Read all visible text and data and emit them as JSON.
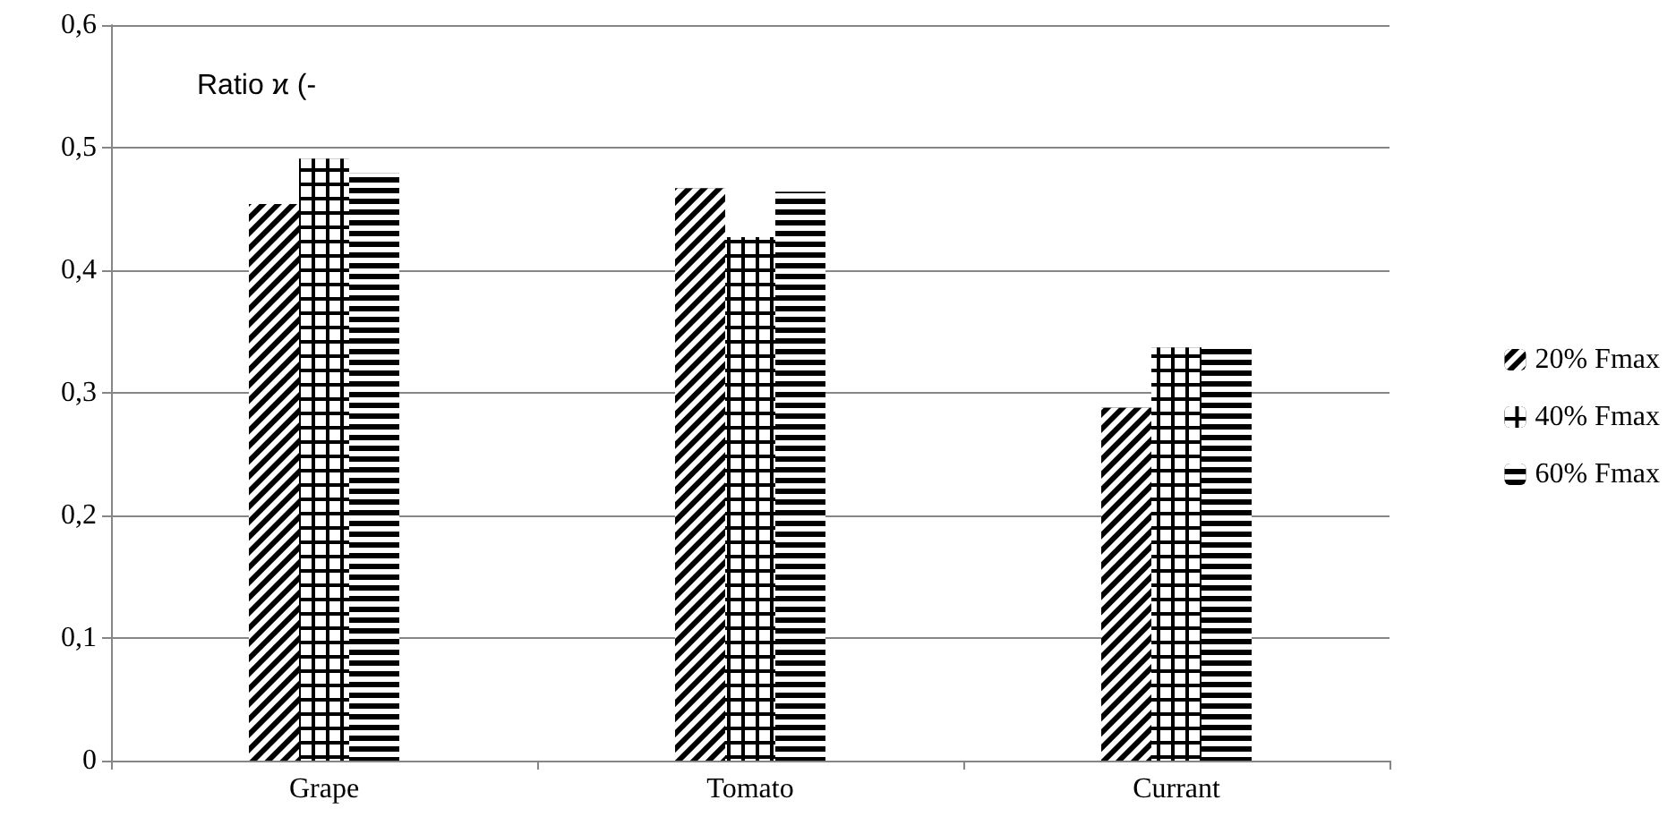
{
  "chart_data": {
    "type": "bar",
    "annotations": [
      "Ratio ϰ (-"
    ],
    "categories": [
      "Grape",
      "Tomato",
      "Currant"
    ],
    "series": [
      {
        "name": "20% Fmax",
        "color": "#000000",
        "values": [
          0.454,
          0.467,
          0.288
        ]
      },
      {
        "name": "40% Fmax",
        "color": "#000000",
        "values": [
          0.491,
          0.427,
          0.337
        ]
      },
      {
        "name": "60% Fmax",
        "color": "#000000",
        "values": [
          0.479,
          0.464,
          0.338
        ]
      }
    ],
    "ylim": [
      0,
      0.6
    ],
    "yticks": [
      0,
      {
        "value": 0.1,
        "label": "0,1"
      },
      {
        "value": 0.2,
        "label": "0,2"
      },
      {
        "value": 0.3,
        "label": "0,3"
      },
      {
        "value": 0.4,
        "label": "0,4"
      },
      {
        "value": 0.5,
        "label": "0,5"
      },
      {
        "value": 0.6,
        "label": "0,6"
      }
    ],
    "grid": "y",
    "legend": "right"
  }
}
